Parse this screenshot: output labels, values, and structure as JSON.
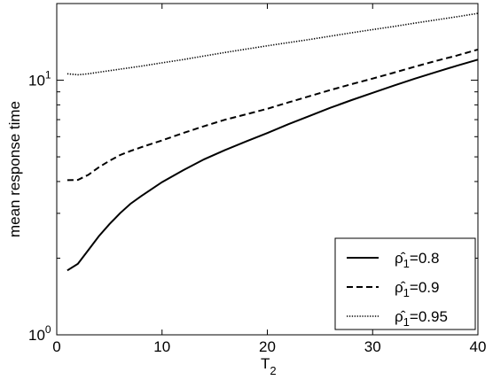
{
  "chart_data": {
    "type": "line",
    "title": "",
    "xlabel": "T",
    "xlabel_sub": "2",
    "ylabel": "mean response time",
    "xlim": [
      0,
      40
    ],
    "ylim": [
      1,
      20
    ],
    "yscale": "log",
    "grid": false,
    "legend_position": "lower-right",
    "x_ticks": [
      0,
      10,
      20,
      30,
      40
    ],
    "x_tick_labels": [
      "0",
      "10",
      "20",
      "30",
      "40"
    ],
    "y_ticks": [
      1,
      10
    ],
    "y_tick_labels": [
      {
        "base": "10",
        "exp": "0"
      },
      {
        "base": "10",
        "exp": "1"
      }
    ],
    "series": [
      {
        "name_symbol": "ρ̂",
        "name_sub": "1",
        "name_value": "=0.8",
        "style": "solid",
        "x": [
          1,
          2,
          3,
          4,
          5,
          6,
          7,
          8,
          10,
          12,
          14,
          16,
          18,
          20,
          22,
          24,
          26,
          28,
          30,
          32,
          34,
          36,
          38,
          40
        ],
        "y": [
          1.79,
          1.9,
          2.15,
          2.44,
          2.72,
          3.0,
          3.27,
          3.5,
          3.98,
          4.43,
          4.89,
          5.32,
          5.75,
          6.2,
          6.72,
          7.24,
          7.8,
          8.35,
          8.92,
          9.52,
          10.14,
          10.76,
          11.4,
          12.05
        ]
      },
      {
        "name_symbol": "ρ̂",
        "name_sub": "1",
        "name_value": "=0.9",
        "style": "dashed",
        "x": [
          1,
          2,
          3,
          4,
          5,
          6,
          7,
          8,
          10,
          12,
          14,
          16,
          18,
          20,
          22,
          24,
          26,
          28,
          30,
          32,
          34,
          36,
          38,
          40
        ],
        "y": [
          4.05,
          4.06,
          4.25,
          4.55,
          4.82,
          5.08,
          5.27,
          5.45,
          5.8,
          6.2,
          6.6,
          7.0,
          7.35,
          7.72,
          8.18,
          8.65,
          9.15,
          9.65,
          10.15,
          10.7,
          11.3,
          11.9,
          12.5,
          13.2
        ]
      },
      {
        "name_symbol": "ρ̂",
        "name_sub": "1",
        "name_value": "=0.95",
        "style": "dotted",
        "x": [
          1,
          2,
          3,
          4,
          5,
          6,
          7,
          8,
          10,
          12,
          14,
          16,
          18,
          20,
          22,
          24,
          26,
          28,
          30,
          32,
          34,
          36,
          38,
          40
        ],
        "y": [
          10.6,
          10.5,
          10.6,
          10.75,
          10.9,
          11.05,
          11.2,
          11.35,
          11.7,
          12.05,
          12.45,
          12.85,
          13.25,
          13.65,
          14.05,
          14.45,
          14.9,
          15.35,
          15.8,
          16.25,
          16.75,
          17.25,
          17.75,
          18.3
        ]
      }
    ]
  }
}
